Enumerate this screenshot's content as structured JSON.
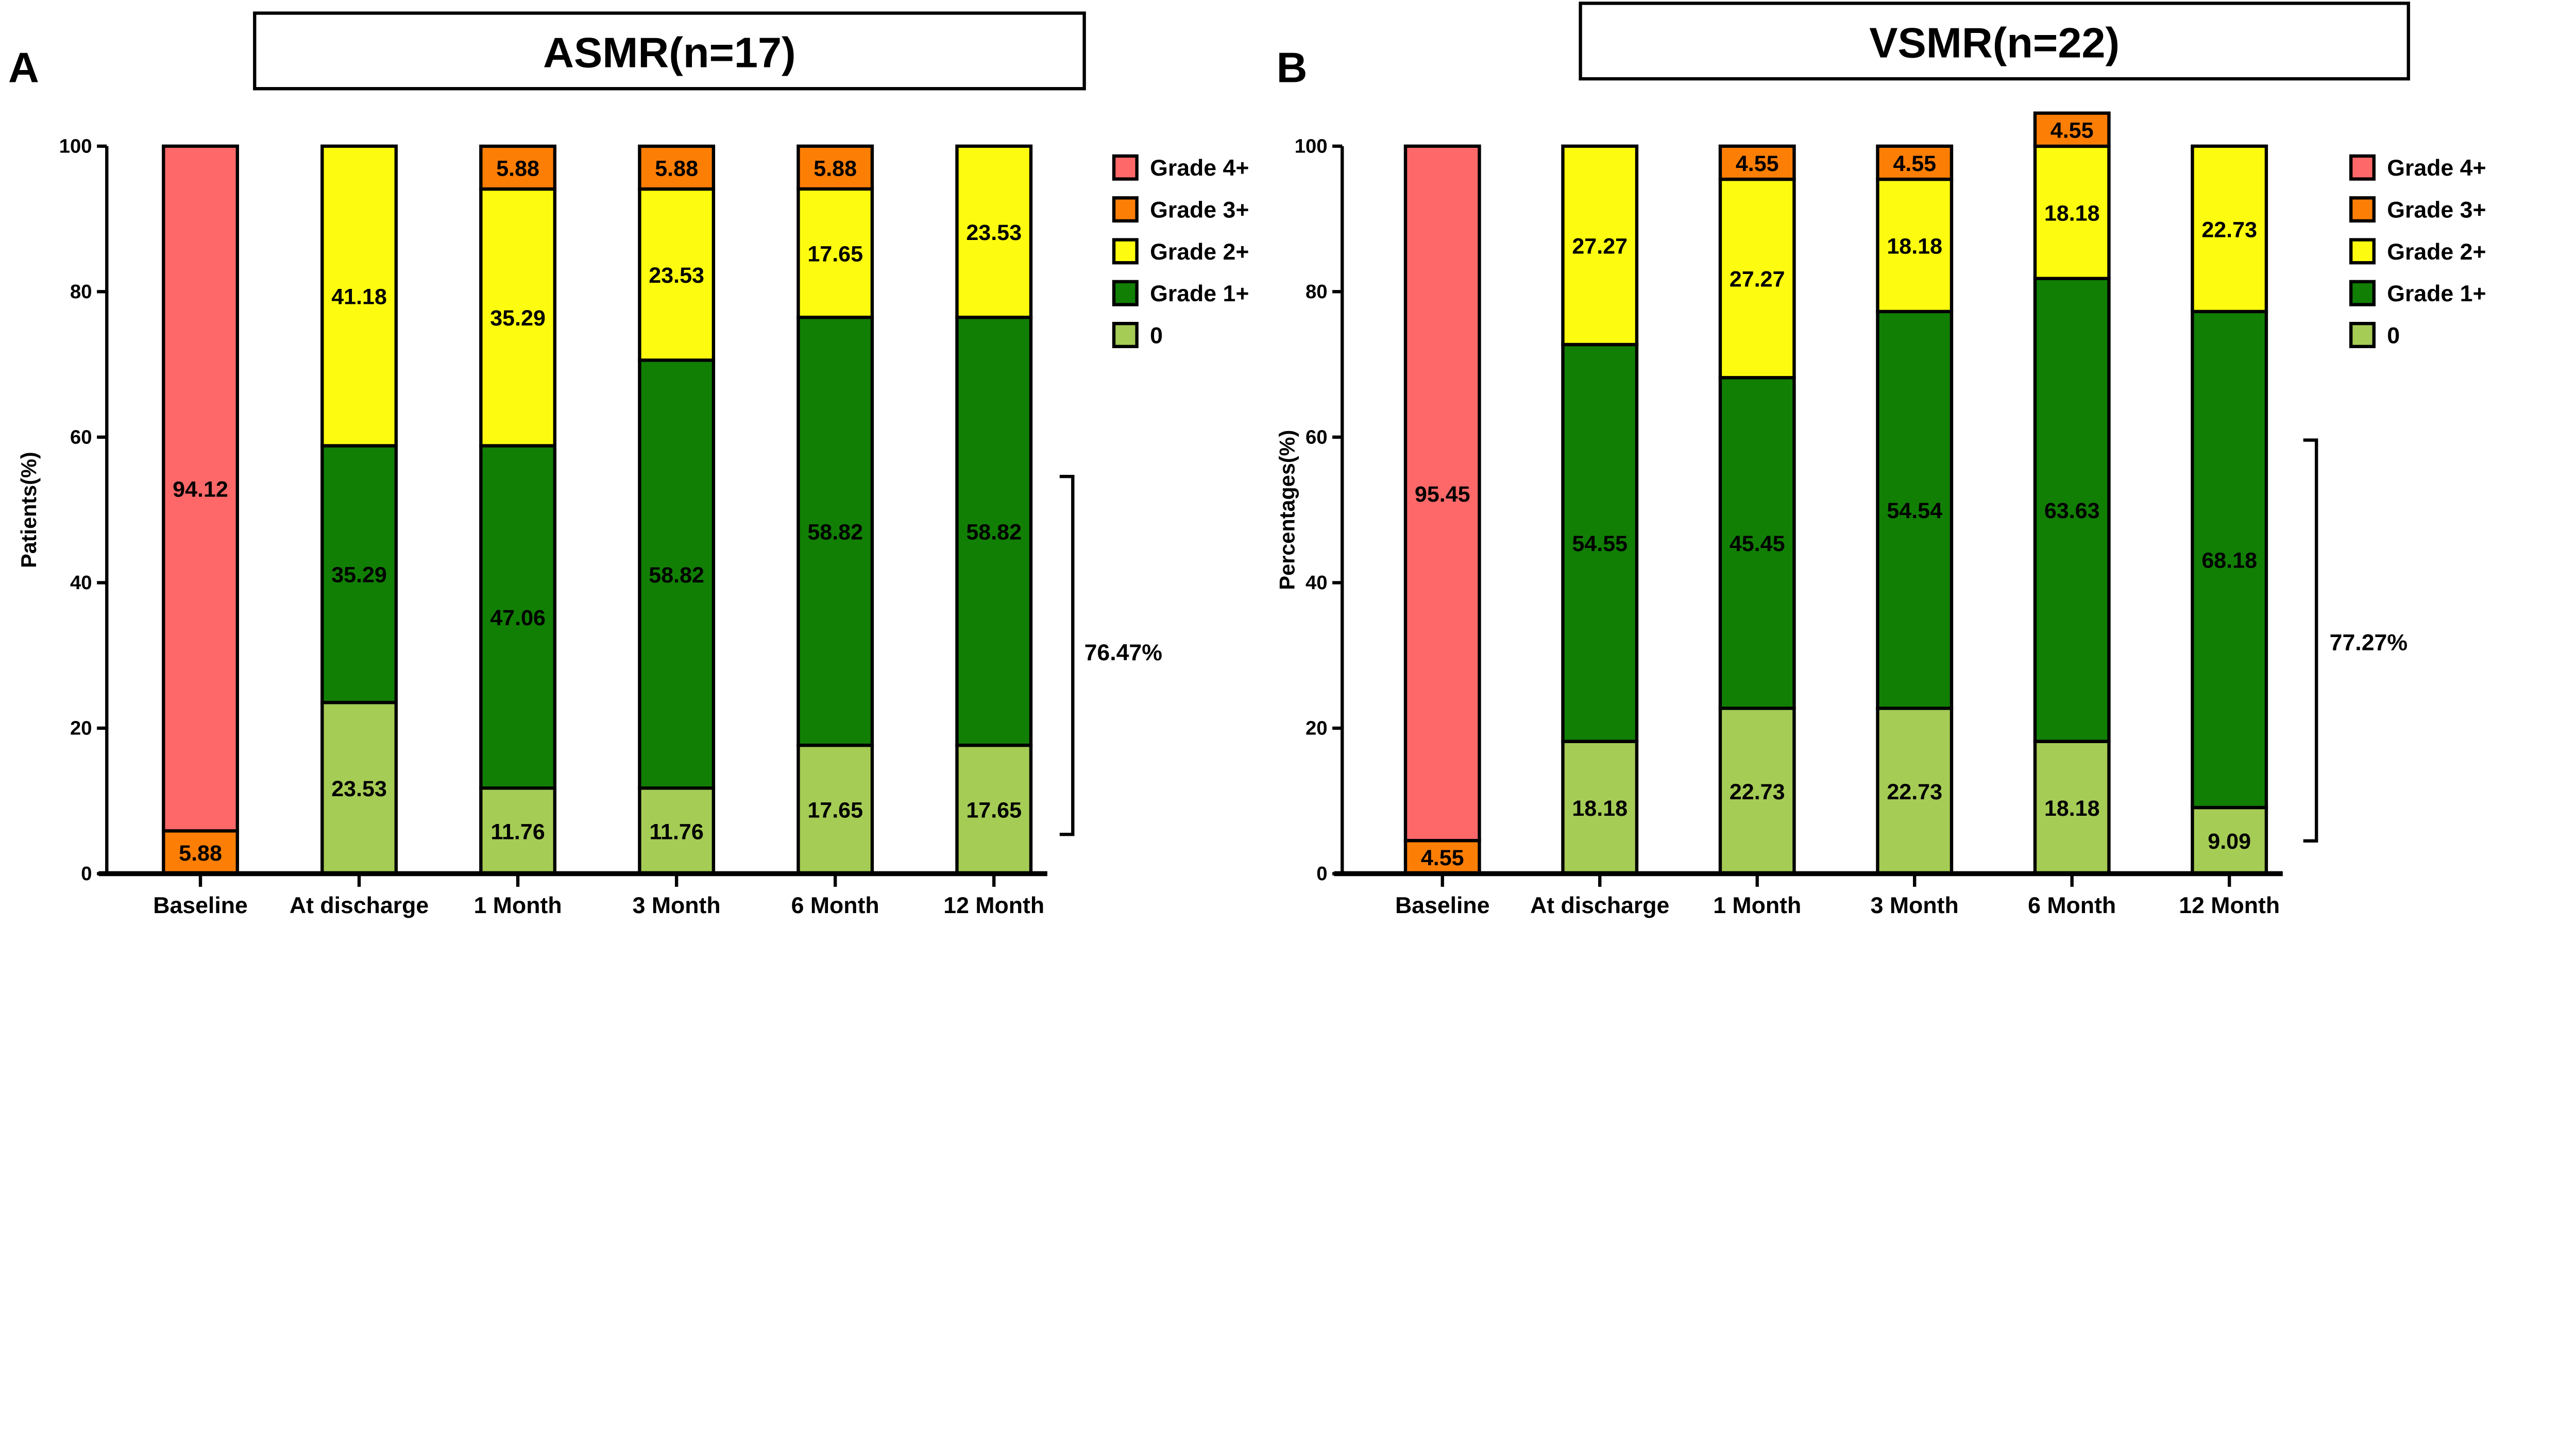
{
  "chart_data": [
    {
      "panel_label": "A",
      "type": "bar",
      "stacked": true,
      "title": "ASMR(n=17)",
      "ylabel": "Patients(%)",
      "xlabel": "",
      "ylim": [
        0,
        100
      ],
      "yticks": [
        "0",
        "20",
        "40",
        "60",
        "80",
        "100"
      ],
      "categories": [
        "Baseline",
        "At discharge",
        "1 Month",
        "3 Month",
        "6 Month",
        "12 Month"
      ],
      "legend_position": "right",
      "series": [
        {
          "name": "0",
          "color": "#A5CC55",
          "values": [
            0,
            23.53,
            11.76,
            11.76,
            17.65,
            17.65
          ]
        },
        {
          "name": "Grade 1+",
          "color": "#117F04",
          "values": [
            0,
            35.29,
            47.06,
            58.82,
            58.82,
            58.82
          ]
        },
        {
          "name": "Grade 2+",
          "color": "#FDFC10",
          "values": [
            0,
            41.18,
            35.29,
            23.53,
            17.65,
            23.53
          ]
        },
        {
          "name": "Grade 3+",
          "color": "#FD7E05",
          "values": [
            5.88,
            0,
            5.88,
            5.88,
            5.88,
            0
          ]
        },
        {
          "name": "Grade 4+",
          "color": "#FE6868",
          "values": [
            94.12,
            0,
            0,
            0,
            0,
            0
          ]
        }
      ],
      "annotation": "76.47%",
      "bracket_range": [
        5.4,
        54.6
      ]
    },
    {
      "panel_label": "B",
      "type": "bar",
      "stacked": true,
      "title": "VSMR(n=22)",
      "ylabel": "Percentages(%)",
      "xlabel": "",
      "ylim": [
        0,
        100
      ],
      "yticks": [
        "0",
        "20",
        "40",
        "60",
        "80",
        "100"
      ],
      "categories": [
        "Baseline",
        "At discharge",
        "1 Month",
        "3 Month",
        "6 Month",
        "12 Month"
      ],
      "legend_position": "right",
      "series": [
        {
          "name": "0",
          "color": "#A5CC55",
          "values": [
            0,
            18.18,
            22.73,
            22.73,
            18.18,
            9.09
          ]
        },
        {
          "name": "Grade 1+",
          "color": "#117F04",
          "values": [
            0,
            54.55,
            45.45,
            54.54,
            63.63,
            68.18
          ]
        },
        {
          "name": "Grade 2+",
          "color": "#FDFC10",
          "values": [
            0,
            27.27,
            27.27,
            18.18,
            18.18,
            22.73
          ]
        },
        {
          "name": "Grade 3+",
          "color": "#FD7E05",
          "values": [
            4.55,
            0,
            4.55,
            4.55,
            4.55,
            0
          ]
        },
        {
          "name": "Grade 4+",
          "color": "#FE6868",
          "values": [
            95.45,
            0,
            0,
            0,
            0,
            0
          ]
        }
      ],
      "annotation": "77.27%",
      "bracket_range": [
        4.5,
        59.6
      ]
    }
  ]
}
